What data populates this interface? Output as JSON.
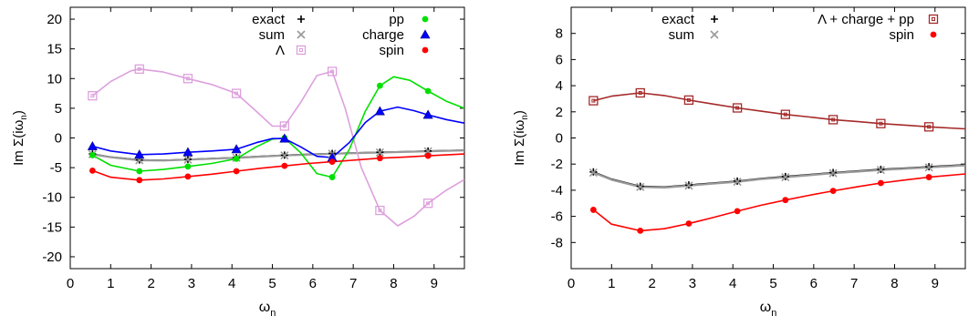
{
  "chart_data": [
    {
      "type": "line",
      "xlabel_main": "ω",
      "xlabel_sub": "n",
      "ylabel": "Im Σ(iω",
      "ylabel_sub": "n",
      "ylabel_tail": ")",
      "xlim": [
        0,
        9.75
      ],
      "ylim": [
        -22,
        22
      ],
      "xticks": [
        0,
        1,
        2,
        3,
        4,
        5,
        6,
        7,
        8,
        9
      ],
      "yticks": [
        -20,
        -15,
        -10,
        -5,
        0,
        5,
        10,
        15,
        20
      ],
      "grid": false,
      "legend": "top, two columns",
      "x": [
        0.55,
        1.71,
        2.91,
        4.11,
        5.3,
        6.48,
        7.66,
        8.85
      ],
      "series": [
        {
          "name": "exact",
          "marker": "plus",
          "color": "#000000",
          "values": [
            -2.7,
            -3.7,
            -3.6,
            -3.3,
            -2.9,
            -2.6,
            -2.4,
            -2.2
          ],
          "curve": [
            [
              0.55,
              -2.7
            ],
            [
              1.0,
              -3.2
            ],
            [
              1.71,
              -3.7
            ],
            [
              2.3,
              -3.75
            ],
            [
              2.91,
              -3.6
            ],
            [
              3.5,
              -3.45
            ],
            [
              4.11,
              -3.3
            ],
            [
              4.7,
              -3.1
            ],
            [
              5.3,
              -2.9
            ],
            [
              5.9,
              -2.75
            ],
            [
              6.48,
              -2.6
            ],
            [
              7.1,
              -2.5
            ],
            [
              7.66,
              -2.4
            ],
            [
              8.3,
              -2.3
            ],
            [
              8.85,
              -2.2
            ],
            [
              9.75,
              -2.05
            ]
          ]
        },
        {
          "name": "sum",
          "marker": "x",
          "color": "#999999",
          "values": [
            -2.75,
            -3.75,
            -3.65,
            -3.35,
            -2.95,
            -2.65,
            -2.45,
            -2.25
          ],
          "curve": [
            [
              0.55,
              -2.75
            ],
            [
              1.0,
              -3.25
            ],
            [
              1.71,
              -3.75
            ],
            [
              2.3,
              -3.8
            ],
            [
              2.91,
              -3.65
            ],
            [
              3.5,
              -3.5
            ],
            [
              4.11,
              -3.35
            ],
            [
              4.7,
              -3.15
            ],
            [
              5.3,
              -2.95
            ],
            [
              5.9,
              -2.8
            ],
            [
              6.48,
              -2.65
            ],
            [
              7.1,
              -2.55
            ],
            [
              7.66,
              -2.45
            ],
            [
              8.3,
              -2.35
            ],
            [
              8.85,
              -2.25
            ],
            [
              9.75,
              -2.1
            ]
          ]
        },
        {
          "name": "Λ",
          "marker": "open-square",
          "color": "#dda0dd",
          "values": [
            7.1,
            11.6,
            10.0,
            7.5,
            2.0,
            11.2,
            -12.2,
            -11.0
          ],
          "curve": [
            [
              0.55,
              7.1
            ],
            [
              1.0,
              9.5
            ],
            [
              1.5,
              11.3
            ],
            [
              1.71,
              11.6
            ],
            [
              2.3,
              11.1
            ],
            [
              2.91,
              10.0
            ],
            [
              3.5,
              9.0
            ],
            [
              4.11,
              7.5
            ],
            [
              4.6,
              4.5
            ],
            [
              5.0,
              2.0
            ],
            [
              5.3,
              2.0
            ],
            [
              5.7,
              6.0
            ],
            [
              6.1,
              10.5
            ],
            [
              6.48,
              11.2
            ],
            [
              6.8,
              5.0
            ],
            [
              7.2,
              -5.0
            ],
            [
              7.66,
              -12.2
            ],
            [
              8.1,
              -14.8
            ],
            [
              8.5,
              -13.2
            ],
            [
              8.85,
              -11.0
            ],
            [
              9.3,
              -8.8
            ],
            [
              9.75,
              -7.0
            ]
          ]
        },
        {
          "name": "pp",
          "marker": "filled-circle",
          "color": "#00e000",
          "values": [
            -2.9,
            -5.6,
            -4.8,
            -3.5,
            0.0,
            -6.6,
            8.8,
            7.9
          ],
          "curve": [
            [
              0.55,
              -2.9
            ],
            [
              1.0,
              -4.6
            ],
            [
              1.71,
              -5.6
            ],
            [
              2.3,
              -5.3
            ],
            [
              2.91,
              -4.8
            ],
            [
              3.5,
              -4.3
            ],
            [
              4.11,
              -3.5
            ],
            [
              4.6,
              -1.5
            ],
            [
              5.0,
              -0.2
            ],
            [
              5.3,
              0.0
            ],
            [
              5.7,
              -2.5
            ],
            [
              6.1,
              -6.0
            ],
            [
              6.48,
              -6.6
            ],
            [
              6.9,
              -2.0
            ],
            [
              7.3,
              4.5
            ],
            [
              7.66,
              8.8
            ],
            [
              8.0,
              10.3
            ],
            [
              8.4,
              9.7
            ],
            [
              8.85,
              7.9
            ],
            [
              9.3,
              6.2
            ],
            [
              9.75,
              5.0
            ]
          ]
        },
        {
          "name": "charge",
          "marker": "filled-triangle",
          "color": "#0000ff",
          "values": [
            -1.4,
            -2.8,
            -2.4,
            -1.9,
            -0.1,
            -3.3,
            4.5,
            3.9
          ],
          "curve": [
            [
              0.55,
              -1.4
            ],
            [
              1.0,
              -2.2
            ],
            [
              1.71,
              -2.8
            ],
            [
              2.3,
              -2.7
            ],
            [
              2.91,
              -2.4
            ],
            [
              3.5,
              -2.2
            ],
            [
              4.11,
              -1.9
            ],
            [
              4.6,
              -0.8
            ],
            [
              5.0,
              -0.1
            ],
            [
              5.3,
              -0.1
            ],
            [
              5.7,
              -1.5
            ],
            [
              6.1,
              -3.1
            ],
            [
              6.48,
              -3.3
            ],
            [
              6.9,
              -0.8
            ],
            [
              7.3,
              2.6
            ],
            [
              7.66,
              4.5
            ],
            [
              8.1,
              5.2
            ],
            [
              8.5,
              4.6
            ],
            [
              8.85,
              3.9
            ],
            [
              9.3,
              3.1
            ],
            [
              9.75,
              2.5
            ]
          ]
        },
        {
          "name": "spin",
          "marker": "filled-circle",
          "color": "#ff0000",
          "values": [
            -5.5,
            -7.1,
            -6.5,
            -5.6,
            -4.7,
            -4.0,
            -3.4,
            -3.0
          ],
          "curve": [
            [
              0.55,
              -5.5
            ],
            [
              1.0,
              -6.6
            ],
            [
              1.71,
              -7.1
            ],
            [
              2.3,
              -6.9
            ],
            [
              2.91,
              -6.5
            ],
            [
              3.5,
              -6.1
            ],
            [
              4.11,
              -5.6
            ],
            [
              4.7,
              -5.1
            ],
            [
              5.3,
              -4.7
            ],
            [
              5.9,
              -4.3
            ],
            [
              6.48,
              -4.0
            ],
            [
              7.1,
              -3.7
            ],
            [
              7.66,
              -3.4
            ],
            [
              8.3,
              -3.2
            ],
            [
              8.85,
              -3.0
            ],
            [
              9.75,
              -2.7
            ]
          ]
        }
      ]
    },
    {
      "type": "line",
      "xlabel_main": "ω",
      "xlabel_sub": "n",
      "ylabel": "Im Σ(iω",
      "ylabel_sub": "n",
      "ylabel_tail": ")",
      "xlim": [
        0,
        9.75
      ],
      "ylim": [
        -10,
        10
      ],
      "xticks": [
        0,
        1,
        2,
        3,
        4,
        5,
        6,
        7,
        8,
        9
      ],
      "yticks": [
        -8,
        -6,
        -4,
        -2,
        0,
        2,
        4,
        6,
        8
      ],
      "grid": false,
      "legend": "top, two columns",
      "x": [
        0.55,
        1.71,
        2.91,
        4.11,
        5.3,
        6.48,
        7.66,
        8.85
      ],
      "series": [
        {
          "name": "exact",
          "marker": "plus",
          "color": "#000000",
          "values": [
            -2.6,
            -3.7,
            -3.6,
            -3.3,
            -2.95,
            -2.65,
            -2.4,
            -2.2
          ],
          "curve": [
            [
              0.55,
              -2.6
            ],
            [
              1.0,
              -3.15
            ],
            [
              1.71,
              -3.7
            ],
            [
              2.3,
              -3.75
            ],
            [
              2.91,
              -3.6
            ],
            [
              3.5,
              -3.45
            ],
            [
              4.11,
              -3.3
            ],
            [
              4.7,
              -3.1
            ],
            [
              5.3,
              -2.95
            ],
            [
              5.9,
              -2.8
            ],
            [
              6.48,
              -2.65
            ],
            [
              7.1,
              -2.52
            ],
            [
              7.66,
              -2.4
            ],
            [
              8.3,
              -2.3
            ],
            [
              8.85,
              -2.2
            ],
            [
              9.75,
              -2.05
            ]
          ]
        },
        {
          "name": "sum",
          "marker": "x",
          "color": "#999999",
          "values": [
            -2.65,
            -3.75,
            -3.65,
            -3.35,
            -3.0,
            -2.7,
            -2.45,
            -2.25
          ],
          "curve": [
            [
              0.55,
              -2.65
            ],
            [
              1.0,
              -3.2
            ],
            [
              1.71,
              -3.75
            ],
            [
              2.3,
              -3.8
            ],
            [
              2.91,
              -3.65
            ],
            [
              3.5,
              -3.5
            ],
            [
              4.11,
              -3.35
            ],
            [
              4.7,
              -3.15
            ],
            [
              5.3,
              -3.0
            ],
            [
              5.9,
              -2.85
            ],
            [
              6.48,
              -2.7
            ],
            [
              7.1,
              -2.57
            ],
            [
              7.66,
              -2.45
            ],
            [
              8.3,
              -2.35
            ],
            [
              8.85,
              -2.25
            ],
            [
              9.75,
              -2.1
            ]
          ]
        },
        {
          "name": "Λ + charge + pp",
          "marker": "open-square",
          "color": "#a52a2a",
          "values": [
            2.85,
            3.45,
            2.9,
            2.3,
            1.8,
            1.4,
            1.1,
            0.85
          ],
          "curve": [
            [
              0.55,
              2.85
            ],
            [
              1.0,
              3.2
            ],
            [
              1.71,
              3.45
            ],
            [
              2.3,
              3.25
            ],
            [
              2.91,
              2.9
            ],
            [
              3.5,
              2.6
            ],
            [
              4.11,
              2.3
            ],
            [
              4.7,
              2.05
            ],
            [
              5.3,
              1.8
            ],
            [
              5.9,
              1.6
            ],
            [
              6.48,
              1.4
            ],
            [
              7.1,
              1.25
            ],
            [
              7.66,
              1.1
            ],
            [
              8.3,
              0.97
            ],
            [
              8.85,
              0.85
            ],
            [
              9.75,
              0.7
            ]
          ]
        },
        {
          "name": "spin",
          "marker": "filled-circle",
          "color": "#ff0000",
          "values": [
            -5.5,
            -7.1,
            -6.55,
            -5.6,
            -4.75,
            -4.05,
            -3.45,
            -3.0
          ],
          "curve": [
            [
              0.55,
              -5.5
            ],
            [
              1.0,
              -6.6
            ],
            [
              1.71,
              -7.1
            ],
            [
              2.3,
              -6.95
            ],
            [
              2.91,
              -6.55
            ],
            [
              3.5,
              -6.1
            ],
            [
              4.11,
              -5.6
            ],
            [
              4.7,
              -5.15
            ],
            [
              5.3,
              -4.75
            ],
            [
              5.9,
              -4.38
            ],
            [
              6.48,
              -4.05
            ],
            [
              7.1,
              -3.72
            ],
            [
              7.66,
              -3.45
            ],
            [
              8.3,
              -3.2
            ],
            [
              8.85,
              -3.0
            ],
            [
              9.75,
              -2.75
            ]
          ]
        }
      ]
    }
  ]
}
